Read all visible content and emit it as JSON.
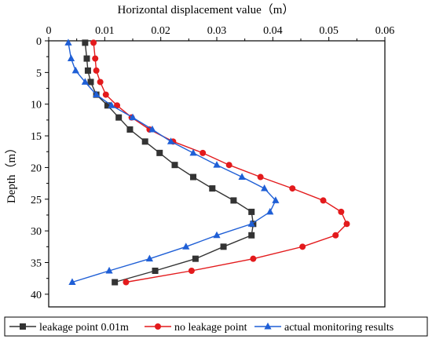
{
  "chart_data": {
    "type": "line",
    "xlabel": "Horizontal displacement value（m）",
    "ylabel": "Depth（m）",
    "x_axis_position": "top",
    "y_axis_inverted": true,
    "xlim": [
      0,
      0.06
    ],
    "ylim": [
      0,
      42
    ],
    "x_ticks": [
      "0",
      "0.01",
      "0.02",
      "0.03",
      "0.04",
      "0.05",
      "0.06"
    ],
    "y_ticks": [
      "0",
      "5",
      "10",
      "15",
      "20",
      "25",
      "30",
      "35",
      "40"
    ],
    "legend_position": "bottom",
    "series": [
      {
        "name": "leakage point 0.01m",
        "color": "#333333",
        "marker": "square",
        "points": [
          [
            0.0065,
            0.3
          ],
          [
            0.0068,
            2.8
          ],
          [
            0.007,
            4.7
          ],
          [
            0.0075,
            6.5
          ],
          [
            0.0085,
            8.5
          ],
          [
            0.0105,
            10.2
          ],
          [
            0.0125,
            12.1
          ],
          [
            0.0145,
            14.0
          ],
          [
            0.0172,
            15.9
          ],
          [
            0.0198,
            17.7
          ],
          [
            0.0225,
            19.6
          ],
          [
            0.0258,
            21.5
          ],
          [
            0.0292,
            23.3
          ],
          [
            0.033,
            25.2
          ],
          [
            0.0362,
            27.0
          ],
          [
            0.0365,
            28.9
          ],
          [
            0.0362,
            30.7
          ],
          [
            0.0312,
            32.5
          ],
          [
            0.0262,
            34.4
          ],
          [
            0.019,
            36.3
          ],
          [
            0.0118,
            38.1
          ]
        ]
      },
      {
        "name": "no leakage point",
        "color": "#e31a1c",
        "marker": "circle",
        "points": [
          [
            0.008,
            0.3
          ],
          [
            0.0083,
            2.8
          ],
          [
            0.0085,
            4.7
          ],
          [
            0.0092,
            6.5
          ],
          [
            0.0102,
            8.5
          ],
          [
            0.0122,
            10.2
          ],
          [
            0.0148,
            12.1
          ],
          [
            0.018,
            14.0
          ],
          [
            0.0222,
            15.9
          ],
          [
            0.0275,
            17.7
          ],
          [
            0.0322,
            19.6
          ],
          [
            0.0378,
            21.5
          ],
          [
            0.0435,
            23.3
          ],
          [
            0.049,
            25.2
          ],
          [
            0.0522,
            27.0
          ],
          [
            0.0532,
            28.9
          ],
          [
            0.0512,
            30.7
          ],
          [
            0.0453,
            32.5
          ],
          [
            0.0365,
            34.4
          ],
          [
            0.0255,
            36.3
          ],
          [
            0.0138,
            38.1
          ]
        ]
      },
      {
        "name": "actual monitoring results",
        "color": "#1f5fd6",
        "marker": "triangle",
        "points": [
          [
            0.0035,
            0.3
          ],
          [
            0.004,
            2.8
          ],
          [
            0.0048,
            4.7
          ],
          [
            0.0065,
            6.5
          ],
          [
            0.0085,
            8.5
          ],
          [
            0.0112,
            10.2
          ],
          [
            0.015,
            12.1
          ],
          [
            0.0185,
            14.0
          ],
          [
            0.0218,
            15.9
          ],
          [
            0.0258,
            17.7
          ],
          [
            0.03,
            19.6
          ],
          [
            0.0345,
            21.5
          ],
          [
            0.0385,
            23.3
          ],
          [
            0.0405,
            25.2
          ],
          [
            0.0395,
            27.0
          ],
          [
            0.0362,
            28.9
          ],
          [
            0.03,
            30.7
          ],
          [
            0.0245,
            32.5
          ],
          [
            0.018,
            34.4
          ],
          [
            0.0108,
            36.3
          ],
          [
            0.0042,
            38.1
          ]
        ]
      }
    ]
  }
}
